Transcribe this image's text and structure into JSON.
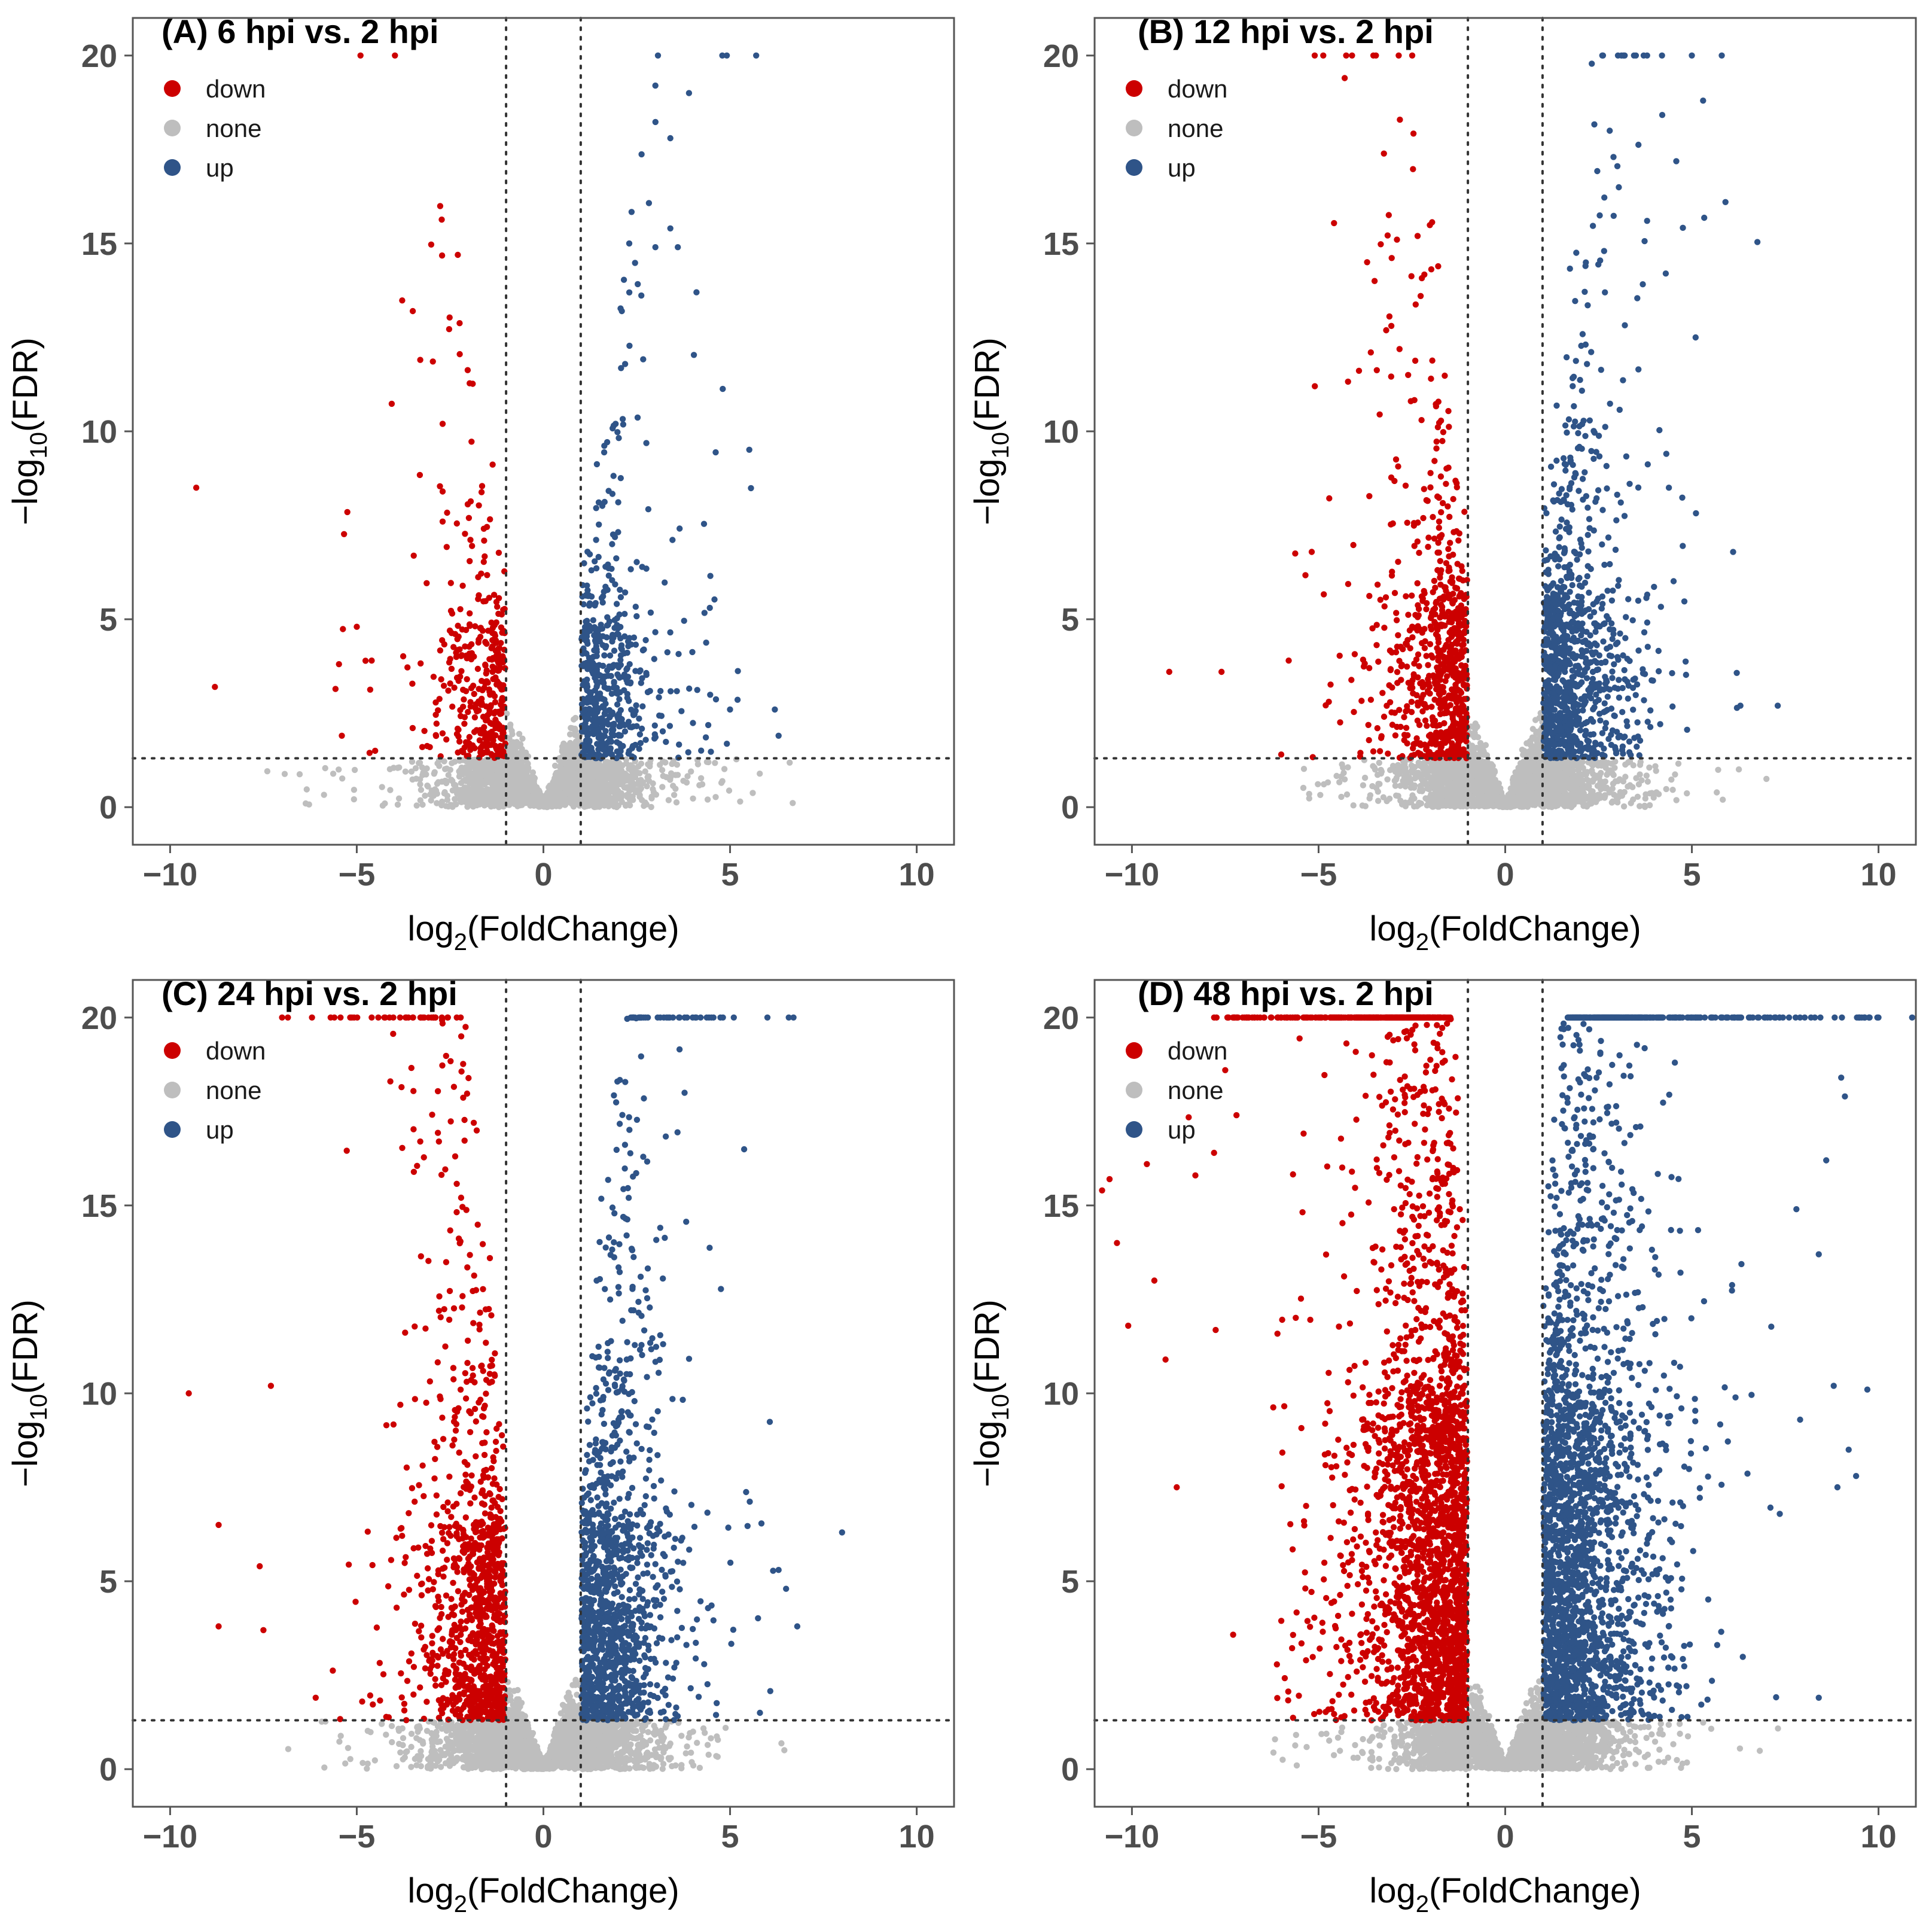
{
  "colors": {
    "down": "#cc0000",
    "none": "#bebebe",
    "up": "#2f5488",
    "threshold": "#333333"
  },
  "chart_data": [
    {
      "type": "scatter",
      "title": "(A) 6 hpi vs. 2 hpi",
      "xlabel": "log2(FoldChange)",
      "ylabel": "-log10(FDR)",
      "xlim": [
        -11,
        11
      ],
      "ylim": [
        -1,
        21
      ],
      "xticks": [
        -10,
        -5,
        0,
        5,
        10
      ],
      "yticks": [
        0,
        5,
        10,
        15,
        20
      ],
      "thresholds": {
        "x": [
          -1,
          1
        ],
        "y": 1.3
      },
      "legend": {
        "position": "top-left",
        "entries": [
          "down",
          "none",
          "up"
        ]
      },
      "series": [
        {
          "name": "down",
          "count": 360,
          "outliers": [
            [
              -4.9,
              20.0
            ],
            [
              -3.5,
              13.2
            ],
            [
              -3.3,
              11.9
            ],
            [
              -2.7,
              10.2
            ],
            [
              -9.3,
              8.5
            ],
            [
              -2.7,
              8.4
            ],
            [
              -2.7,
              7.6
            ],
            [
              -8.8,
              3.2
            ],
            [
              -5.0,
              4.8
            ],
            [
              -5.4,
              1.9
            ],
            [
              -4.6,
              3.9
            ]
          ]
        },
        {
          "name": "none",
          "count": 2800
        },
        {
          "name": "up",
          "count": 560,
          "outliers": [
            [
              5.7,
              20.0
            ],
            [
              3.0,
              19.2
            ],
            [
              3.9,
              19.0
            ],
            [
              3.4,
              17.8
            ],
            [
              3.4,
              15.4
            ],
            [
              2.3,
              15.0
            ],
            [
              3.0,
              14.9
            ],
            [
              3.6,
              14.9
            ],
            [
              4.1,
              13.7
            ],
            [
              2.1,
              13.2
            ],
            [
              6.2,
              2.6
            ],
            [
              6.3,
              1.9
            ],
            [
              5.0,
              2.6
            ]
          ]
        }
      ]
    },
    {
      "type": "scatter",
      "title": "(B) 12 hpi vs. 2 hpi",
      "xlabel": "log2(FoldChange)",
      "ylabel": "-log10(FDR)",
      "xlim": [
        -11,
        11
      ],
      "ylim": [
        -1,
        21
      ],
      "xticks": [
        -10,
        -5,
        0,
        5,
        10
      ],
      "yticks": [
        0,
        5,
        10,
        15,
        20
      ],
      "thresholds": {
        "x": [
          -1,
          1
        ],
        "y": 1.3
      },
      "legend": {
        "position": "top-left",
        "entries": [
          "down",
          "none",
          "up"
        ]
      },
      "series": [
        {
          "name": "down",
          "count": 750,
          "outliers": [
            [
              -4.3,
              19.4
            ],
            [
              -2.9,
              15.1
            ],
            [
              -3.7,
              14.5
            ],
            [
              -3.5,
              14.0
            ],
            [
              -3.6,
              12.1
            ],
            [
              -5.1,
              11.2
            ],
            [
              -2.6,
              11.5
            ],
            [
              -9.0,
              3.6
            ],
            [
              -7.6,
              3.6
            ],
            [
              -5.8,
              3.9
            ],
            [
              -6.0,
              1.4
            ]
          ]
        },
        {
          "name": "none",
          "count": 3000
        },
        {
          "name": "up",
          "count": 1000,
          "outliers": [
            [
              2.6,
              20.0
            ],
            [
              3.2,
              20.0
            ],
            [
              3.5,
              20.0
            ],
            [
              3.8,
              20.0
            ],
            [
              4.2,
              20.0
            ],
            [
              5.0,
              20.0
            ],
            [
              5.8,
              20.0
            ],
            [
              5.3,
              18.8
            ],
            [
              2.8,
              18.0
            ],
            [
              2.9,
              17.3
            ],
            [
              5.9,
              16.1
            ],
            [
              3.8,
              15.6
            ],
            [
              4.3,
              14.2
            ],
            [
              5.1,
              12.5
            ],
            [
              7.3,
              2.7
            ],
            [
              6.3,
              2.7
            ]
          ]
        }
      ]
    },
    {
      "type": "scatter",
      "title": "(C) 24 hpi vs. 2 hpi",
      "xlabel": "log2(FoldChange)",
      "ylabel": "-log10(FDR)",
      "xlim": [
        -11,
        11
      ],
      "ylim": [
        -1,
        21
      ],
      "xticks": [
        -10,
        -5,
        0,
        5,
        10
      ],
      "yticks": [
        0,
        5,
        10,
        15,
        20
      ],
      "thresholds": {
        "x": [
          -1,
          1
        ],
        "y": 1.3
      },
      "legend": {
        "position": "top-left",
        "entries": [
          "down",
          "none",
          "up"
        ]
      },
      "series": [
        {
          "name": "down",
          "count": 1000,
          "outliers": [
            [
              -7.0,
              20.0
            ],
            [
              -6.2,
              20.0
            ],
            [
              -5.7,
              20.0
            ],
            [
              -5.6,
              20.0
            ],
            [
              -4.6,
              20.0
            ],
            [
              -3.5,
              20.0
            ],
            [
              -3.0,
              20.0
            ],
            [
              -4.1,
              18.3
            ],
            [
              -3.3,
              16.7
            ],
            [
              -2.8,
              16.7
            ],
            [
              -9.5,
              10.0
            ],
            [
              -7.3,
              10.2
            ],
            [
              -8.7,
              6.5
            ],
            [
              -8.7,
              3.8
            ],
            [
              -7.5,
              3.7
            ],
            [
              -7.6,
              5.4
            ],
            [
              -6.1,
              1.9
            ]
          ]
        },
        {
          "name": "none",
          "count": 3300
        },
        {
          "name": "up",
          "count": 1300,
          "outliers": [
            [
              2.6,
              20.0
            ],
            [
              3.3,
              20.0
            ],
            [
              4.0,
              20.0
            ],
            [
              4.5,
              20.0
            ],
            [
              5.1,
              20.0
            ],
            [
              6.0,
              20.0
            ],
            [
              6.7,
              20.0
            ],
            [
              8.0,
              6.3
            ],
            [
              6.8,
              3.8
            ],
            [
              6.5,
              4.8
            ],
            [
              6.3,
              5.3
            ],
            [
              5.8,
              1.5
            ]
          ]
        }
      ]
    },
    {
      "type": "scatter",
      "title": "(D) 48 hpi vs. 2 hpi",
      "xlabel": "log2(FoldChange)",
      "ylabel": "-log10(FDR)",
      "xlim": [
        -11,
        11
      ],
      "ylim": [
        -1,
        21
      ],
      "xticks": [
        -10,
        -5,
        0,
        5,
        10
      ],
      "yticks": [
        0,
        5,
        10,
        15,
        20
      ],
      "thresholds": {
        "x": [
          -1,
          1
        ],
        "y": 1.3
      },
      "legend": {
        "position": "top-left",
        "entries": [
          "down",
          "none",
          "up"
        ]
      },
      "series": [
        {
          "name": "down",
          "count": 2600,
          "capped_at_20": 80,
          "outliers": [
            [
              -10.8,
              15.4
            ],
            [
              -10.6,
              15.7
            ],
            [
              -10.4,
              14.0
            ],
            [
              -10.1,
              11.8
            ],
            [
              -9.6,
              16.1
            ],
            [
              -9.4,
              13.0
            ],
            [
              -9.1,
              10.9
            ],
            [
              -8.8,
              7.5
            ],
            [
              -8.3,
              15.8
            ],
            [
              -7.8,
              16.4
            ],
            [
              -7.5,
              18.6
            ],
            [
              -7.2,
              17.4
            ]
          ]
        },
        {
          "name": "none",
          "count": 3500
        },
        {
          "name": "up",
          "count": 2400,
          "capped_at_20": 90,
          "outliers": [
            [
              10.9,
              20.0
            ],
            [
              9.5,
              20.0
            ],
            [
              9.0,
              18.4
            ],
            [
              9.1,
              17.9
            ],
            [
              8.6,
              16.2
            ],
            [
              7.8,
              14.9
            ],
            [
              8.4,
              13.7
            ],
            [
              9.7,
              10.1
            ],
            [
              8.8,
              10.2
            ],
            [
              9.2,
              8.5
            ],
            [
              9.4,
              7.8
            ],
            [
              8.9,
              7.5
            ],
            [
              7.9,
              9.3
            ],
            [
              8.4,
              1.9
            ]
          ]
        }
      ]
    }
  ]
}
